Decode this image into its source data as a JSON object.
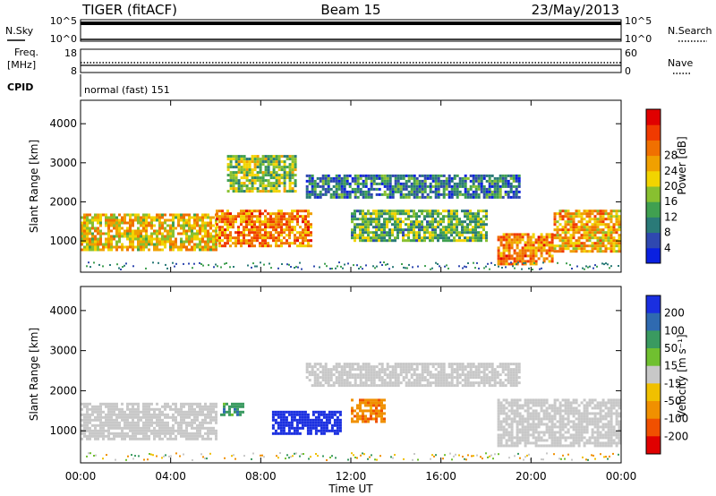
{
  "header": {
    "title": "TIGER (fitACF)",
    "beam": "Beam 15",
    "date": "23/May/2013"
  },
  "status_panels": {
    "nsky_label": "N.Sky",
    "nsky_ticks": [
      "10^5",
      "10^0"
    ],
    "nsearch_label": "N.Search",
    "nsearch_ticks": [
      "10^5",
      "10^0"
    ],
    "freq_label_1": "Freq.",
    "freq_label_2": "[MHz]",
    "freq_ticks": [
      "18",
      "8"
    ],
    "nave_label": "Nave",
    "nave_ticks": [
      "60",
      "0"
    ],
    "cpid_label": "CPID",
    "cpid_value": "normal (fast) 151"
  },
  "chart_data": [
    {
      "type": "heatmap",
      "panel": "power",
      "ylabel": "Slant Range [km]",
      "ylim": [
        200,
        4600
      ],
      "yticks": [
        "1000",
        "2000",
        "3000",
        "4000"
      ],
      "colorbar_label": "Power [dB]",
      "colorbar_ticks": [
        "4",
        "8",
        "12",
        "16",
        "20",
        "24",
        "28"
      ],
      "colorbar_colors": [
        "#0a20e0",
        "#2f48b0",
        "#2a7a78",
        "#40a050",
        "#88c030",
        "#f2d400",
        "#f0a000",
        "#f07000",
        "#f03a00",
        "#e00000"
      ],
      "echo_bands": [
        {
          "t_start": 0,
          "t_end": 6,
          "range_low": 800,
          "range_high": 1700,
          "power_db": 18
        },
        {
          "t_start": 6,
          "t_end": 10.2,
          "range_low": 900,
          "range_high": 1800,
          "power_db": 22
        },
        {
          "t_start": 6.5,
          "t_end": 9.5,
          "range_low": 2300,
          "range_high": 3200,
          "power_db": 14
        },
        {
          "t_start": 10,
          "t_end": 19.5,
          "range_low": 2100,
          "range_high": 2700,
          "power_db": 8
        },
        {
          "t_start": 12,
          "t_end": 18,
          "range_low": 1000,
          "range_high": 1800,
          "power_db": 12
        },
        {
          "t_start": 18.5,
          "t_end": 21,
          "range_low": 400,
          "range_high": 1200,
          "power_db": 22
        },
        {
          "t_start": 21,
          "t_end": 24,
          "range_low": 700,
          "range_high": 1800,
          "power_db": 20
        }
      ]
    },
    {
      "type": "heatmap",
      "panel": "velocity",
      "ylabel": "Slant Range [km]",
      "xlabel": "Time UT",
      "ylim": [
        200,
        4600
      ],
      "yticks": [
        "1000",
        "2000",
        "3000",
        "4000"
      ],
      "xticks": [
        "00:00",
        "04:00",
        "08:00",
        "12:00",
        "16:00",
        "20:00",
        "00:00"
      ],
      "colorbar_label": "Velocity [m s⁻¹]",
      "colorbar_ticks": [
        "200",
        "100",
        "50",
        "15",
        "-15",
        "-50",
        "-100",
        "-200"
      ],
      "colorbar_colors": [
        "#1a2fe0",
        "#2f6ab0",
        "#3a9a60",
        "#70c030",
        "#c8c8c8",
        "#f0c000",
        "#f09000",
        "#f05000",
        "#e00000"
      ],
      "echo_bands": [
        {
          "t_start": 0,
          "t_end": 6,
          "range_low": 800,
          "range_high": 1700,
          "velocity": 0
        },
        {
          "t_start": 6.2,
          "t_end": 7.2,
          "range_low": 1400,
          "range_high": 1700,
          "velocity": 60
        },
        {
          "t_start": 8.5,
          "t_end": 11.5,
          "range_low": 900,
          "range_high": 1500,
          "velocity": 200
        },
        {
          "t_start": 12,
          "t_end": 13.5,
          "range_low": 1200,
          "range_high": 1800,
          "velocity": -60
        },
        {
          "t_start": 10,
          "t_end": 19.5,
          "range_low": 2100,
          "range_high": 2700,
          "velocity": 0
        },
        {
          "t_start": 18.5,
          "t_end": 24,
          "range_low": 600,
          "range_high": 1800,
          "velocity": 0
        }
      ]
    }
  ]
}
